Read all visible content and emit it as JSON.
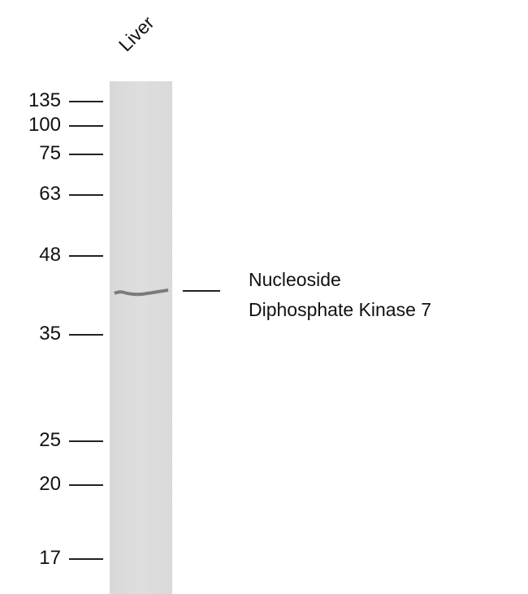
{
  "lane_label": "Liver",
  "markers": [
    "135",
    "100",
    "75",
    "63",
    "48",
    "35",
    "25",
    "20",
    "17"
  ],
  "target": {
    "line1": "Nucleoside",
    "line2": "Diphosphate Kinase 7"
  }
}
